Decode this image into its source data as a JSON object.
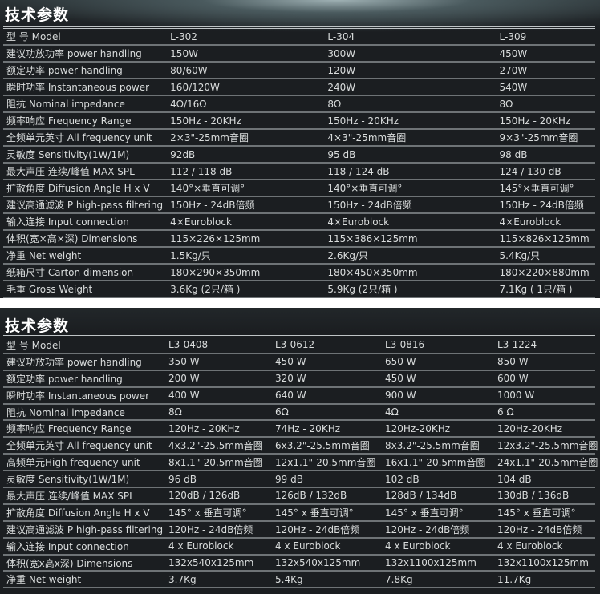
{
  "table1": {
    "title": "技术参数",
    "rows": [
      [
        "型 号 Model",
        "L-302",
        "L-304",
        "L-309"
      ],
      [
        "建议功放功率 power handling",
        "150W",
        "300W",
        "450W"
      ],
      [
        "额定功率 power handling",
        "80/60W",
        "120W",
        "270W"
      ],
      [
        "瞬时功率  Instantaneous power",
        "160/120W",
        "240W",
        "540W"
      ],
      [
        "阻抗 Nominal impedance",
        "4Ω/16Ω",
        "8Ω",
        "8Ω"
      ],
      [
        "频率响应 Frequency Range",
        "150Hz - 20KHz",
        "150Hz - 20KHz",
        "150Hz - 20KHz"
      ],
      [
        "全频单元英寸 All frequency unit",
        "2×3\"-25mm音圈",
        "4×3\"-25mm音圈",
        "9×3\"-25mm音圈"
      ],
      [
        "灵敏度 Sensitivity(1W/1M)",
        "92dB",
        "95 dB",
        "98 dB"
      ],
      [
        "最大声压 连续/峰值 MAX SPL",
        "112 / 118 dB",
        "118 / 124 dB",
        "124 / 130 dB"
      ],
      [
        "扩散角度 Diffusion Angle H x V",
        "140°×垂直可调°",
        "140°×垂直可调°",
        "145°×垂直可调°"
      ],
      [
        "建议高通滤波 P high-pass filtering",
        "150Hz - 24dB倍频",
        "150Hz - 24dB倍频",
        "150Hz - 24dB倍频"
      ],
      [
        "输入连接 Input connection",
        "4×Euroblock",
        "4×Euroblock",
        "4×Euroblock"
      ],
      [
        "体积(宽×高×深) Dimensions",
        "115×226×125mm",
        "115×386×125mm",
        "115×826×125mm"
      ],
      [
        "净重 Net weight",
        "1.5Kg/只",
        "2.6Kg/只",
        "5.4Kg/只"
      ],
      [
        "纸箱尺寸 Carton dimension",
        "180×290×350mm",
        "180×450×350mm",
        "180×220×880mm"
      ],
      [
        "毛重 Gross Weight",
        "3.6Kg (2只/箱 )",
        "5.9Kg (2只/箱 )",
        "7.1Kg ( 1只/箱 )"
      ]
    ]
  },
  "table2": {
    "title": "技术参数",
    "rows": [
      [
        "型 号 Model",
        "L3-0408",
        "L3-0612",
        "L3-0816",
        "L3-1224"
      ],
      [
        "建议功放功率  power handling",
        "350 W",
        "450 W",
        "650 W",
        "850 W"
      ],
      [
        "额定功率 power handling",
        "200 W",
        "320 W",
        "450 W",
        "600 W"
      ],
      [
        "瞬时功率 Instantaneous power",
        "400 W",
        " 640 W",
        "900 W",
        "1000 W"
      ],
      [
        "阻抗 Nominal impedance",
        "8Ω",
        " 6Ω",
        "4Ω",
        "6 Ω"
      ],
      [
        "频率响应 Frequency Range",
        "120Hz - 20KHz",
        "74Hz - 20KHz",
        "120Hz-20KHz",
        "120Hz-20KHz"
      ],
      [
        "全频单元英寸 All frequency unit",
        "4x3.2\"-25.5mm音圈",
        "6x3.2\"-25.5mm音圈",
        "8x3.2\"-25.5mm音圈",
        "12x3.2\"-25.5mm音圈"
      ],
      [
        "高频单元High frequency unit",
        "8x1.1\"-20.5mm音圈",
        "12x1.1\"-20.5mm音圈",
        "16x1.1\"-20.5mm音圈",
        "24x1.1\"-20.5mm音圈"
      ],
      [
        "灵敏度 Sensitivity(1W/1M)",
        "96 dB",
        "99 dB",
        "102 dB",
        "104 dB"
      ],
      [
        "最大声压 连续/峰值  MAX SPL",
        "120dB / 126dB",
        "126dB / 132dB",
        "128dB / 134dB",
        "130dB / 136dB"
      ],
      [
        "扩散角度 Diffusion Angle H x V",
        "145° x 垂直可调°",
        "145° x 垂直可调°",
        "145° x 垂直可调°",
        "145° x 垂直可调°"
      ],
      [
        "建议高通滤波 P high-pass filtering",
        "120Hz - 24dB倍频",
        "120Hz - 24dB倍频",
        "120Hz - 24dB倍频",
        "120Hz - 24dB倍频"
      ],
      [
        "输入连接  Input connection",
        "4 x Euroblock",
        "4 x Euroblock",
        "4 x Euroblock",
        "4 x Euroblock"
      ],
      [
        "体积(宽x高x深) Dimensions",
        "132x540x125mm",
        "132x540x125mm",
        "132x1100x125mm",
        "132x1100x125mm"
      ],
      [
        "净重 Net weight",
        "3.7Kg",
        "5.4Kg",
        "7.8Kg",
        "11.7Kg"
      ]
    ]
  }
}
